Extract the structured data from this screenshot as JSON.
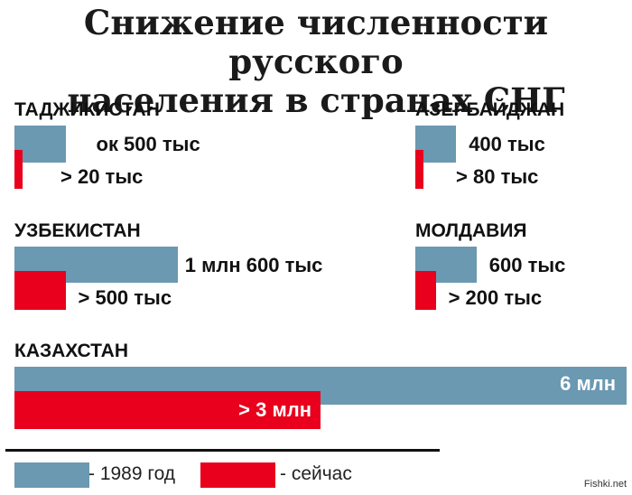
{
  "chart_data": {
    "type": "bar",
    "title_line1": "Снижение численности русского",
    "title_line2": "населения в странах СНГ",
    "colors": {
      "1989": "#6a99b1",
      "now": "#e8001c"
    },
    "countries": [
      {
        "name": "ТАДЖИКИСТАН",
        "v1989": 500000,
        "vnow": 20000,
        "label1989": "ок 500 тыс",
        "labelnow": "> 20 тыс"
      },
      {
        "name": "АЗЕРБАЙДЖАН",
        "v1989": 400000,
        "vnow": 80000,
        "label1989": "400 тыс",
        "labelnow": "> 80 тыс"
      },
      {
        "name": "УЗБЕКИСТАН",
        "v1989": 1600000,
        "vnow": 500000,
        "label1989": "1 млн 600 тыс",
        "labelnow": "> 500 тыс"
      },
      {
        "name": "МОЛДАВИЯ",
        "v1989": 600000,
        "vnow": 200000,
        "label1989": "600 тыс",
        "labelnow": "> 200 тыс"
      },
      {
        "name": "КАЗАХСТАН",
        "v1989": 6000000,
        "vnow": 3000000,
        "label1989": "6 млн",
        "labelnow": "> 3 млн"
      }
    ],
    "legend": [
      {
        "key": "1989",
        "label": "- 1989 год"
      },
      {
        "key": "now",
        "label": "- сейчас"
      }
    ]
  },
  "watermark": "Fishki.net"
}
